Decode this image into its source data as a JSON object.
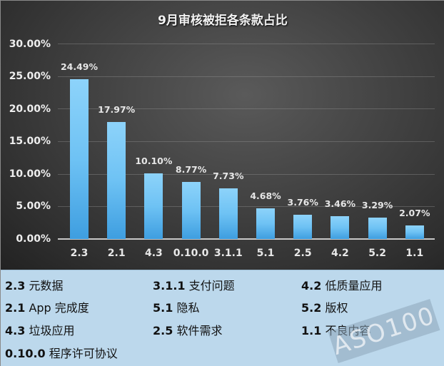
{
  "chart_data": {
    "type": "bar",
    "title": "9月审核被拒各条款占比",
    "xlabel": "",
    "ylabel": "",
    "ylim": [
      0,
      30
    ],
    "yticks": [
      "0.00%",
      "5.00%",
      "10.00%",
      "15.00%",
      "20.00%",
      "25.00%",
      "30.00%"
    ],
    "grid": true,
    "legend_position": "bottom-panel",
    "categories": [
      "2.3",
      "2.1",
      "4.3",
      "0.10.0",
      "3.1.1",
      "5.1",
      "2.5",
      "4.2",
      "5.2",
      "1.1"
    ],
    "values": [
      24.49,
      17.97,
      10.1,
      8.77,
      7.73,
      4.68,
      3.76,
      3.46,
      3.29,
      2.07
    ],
    "value_labels": [
      "24.49%",
      "17.97%",
      "10.10%",
      "8.77%",
      "7.73%",
      "4.68%",
      "3.76%",
      "3.46%",
      "3.29%",
      "2.07%"
    ],
    "colors": {
      "bar_top": "#8dd3fa",
      "bar_bottom": "#3e9ee0",
      "background": "#3a3a3a",
      "legend_bg": "#bcd8ec"
    }
  },
  "legend": {
    "items": [
      {
        "code": "2.3",
        "label": "元数据"
      },
      {
        "code": "2.1",
        "label": "App 完成度"
      },
      {
        "code": "4.3",
        "label": "垃圾应用"
      },
      {
        "code": "0.10.0",
        "label": "程序许可协议"
      },
      {
        "code": "3.1.1",
        "label": "支付问题"
      },
      {
        "code": "5.1",
        "label": "隐私"
      },
      {
        "code": "2.5",
        "label": "软件需求"
      },
      {
        "code": "4.2",
        "label": "低质量应用"
      },
      {
        "code": "5.2",
        "label": "版权"
      },
      {
        "code": "1.1",
        "label": "不良内容"
      }
    ]
  },
  "watermark": "ASO100"
}
